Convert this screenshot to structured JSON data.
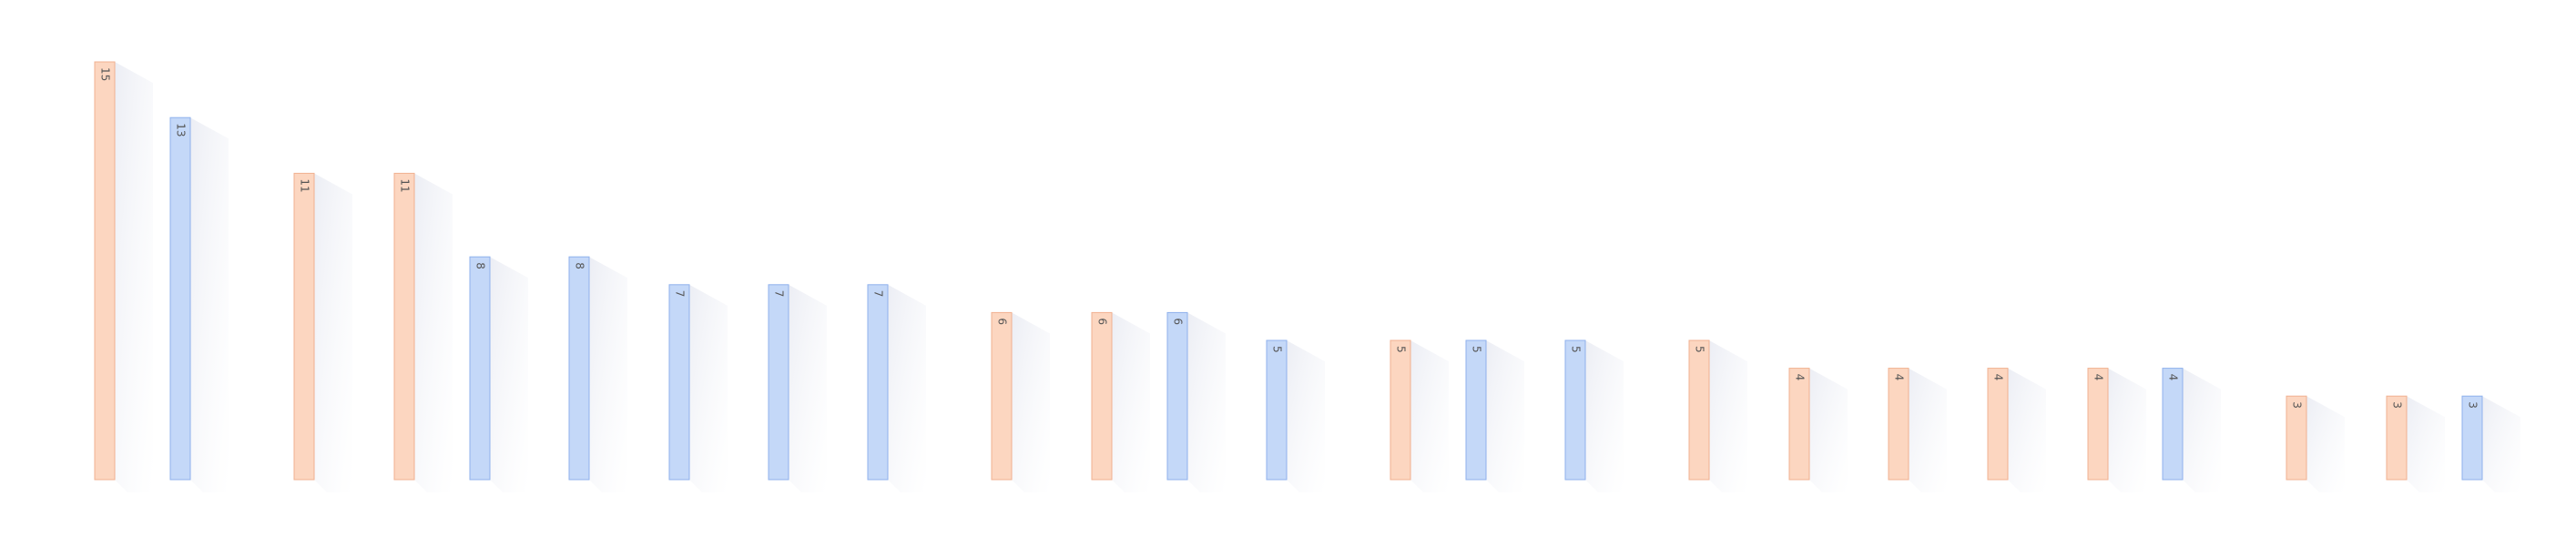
{
  "chart_data": {
    "type": "bar",
    "title": "",
    "xlabel": "",
    "ylabel": "",
    "ylim": [
      0,
      16
    ],
    "grid": false,
    "legend": "none",
    "colors": {
      "orange": "#fcd6c0",
      "orange_edge": "#f0b090",
      "blue": "#c4d8f8",
      "blue_edge": "#8fb1ec",
      "label": "#555555"
    },
    "values": [
      15,
      13,
      11,
      11,
      8,
      8,
      7,
      7,
      7,
      6,
      6,
      6,
      5,
      5,
      5,
      5,
      5,
      4,
      4,
      4,
      4,
      4,
      3,
      3,
      3
    ],
    "value_labels": [
      "15",
      "13",
      "11",
      "11",
      "8",
      "8",
      "7",
      "7",
      "7",
      "6",
      "6",
      "6",
      "5",
      "5",
      "5",
      "5",
      "5",
      "4",
      "4",
      "4",
      "4",
      "4",
      "3",
      "3",
      "3"
    ],
    "bar_colors": [
      "orange",
      "blue",
      "orange",
      "orange",
      "blue",
      "blue",
      "blue",
      "blue",
      "blue",
      "orange",
      "orange",
      "blue",
      "blue",
      "orange",
      "blue",
      "blue",
      "orange",
      "orange",
      "orange",
      "orange",
      "orange",
      "blue",
      "orange",
      "orange",
      "blue"
    ]
  }
}
